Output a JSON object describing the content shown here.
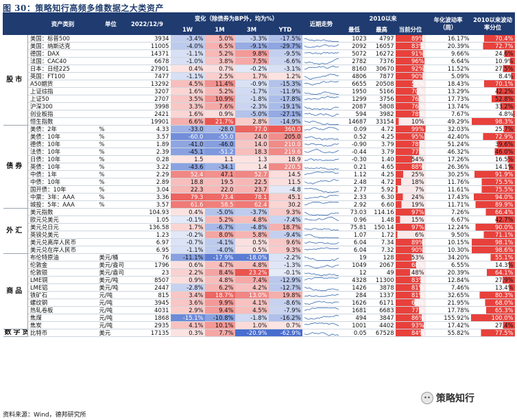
{
  "caption": "图 30：策略知行高频多维数据之大类资产",
  "source": "资料来源：Wind，德邦研究所",
  "watermark": "策略知行",
  "headers": {
    "top": {
      "change": "变化（除债券为BP外，均为%）",
      "since2010": "2010以来"
    },
    "asset": "资产类别",
    "unit": "单位",
    "date": "2022/12/9",
    "w1": "1W",
    "m1": "1M",
    "m3": "3M",
    "ytd": "YTD",
    "trend": "近期走势",
    "low": "最低",
    "high": "最高",
    "pct": "当前分位",
    "vol": "年化波动率（周）",
    "volpct": "2010以来波动率分位"
  },
  "colors": {
    "red": "#e8413c",
    "blue": "#2f59c8",
    "header": "#1f3b70"
  },
  "groups": [
    {
      "name": "股市",
      "rows": [
        {
          "name": "美国：标普500",
          "unit": "",
          "value": "3934",
          "w1": "-3.4%",
          "m1": "5.0%",
          "m3": "-3.3%",
          "ytd": "-17.5%",
          "low": "1023",
          "high": "4797",
          "pct": "89%",
          "vol": "16.17%",
          "volpct": "70.4%"
        },
        {
          "name": "美国：纳斯达克",
          "unit": "",
          "value": "11005",
          "w1": "-4.0%",
          "m1": "6.5%",
          "m3": "-9.1%",
          "ytd": "-29.7%",
          "low": "2092",
          "high": "16057",
          "pct": "83%",
          "vol": "20.39%",
          "volpct": "72.7%"
        },
        {
          "name": "德国：DAX",
          "unit": "",
          "value": "14371",
          "w1": "-1.1%",
          "m1": "5.2%",
          "m3": "9.8%",
          "ytd": "-9.5%",
          "low": "5072",
          "high": "16272",
          "pct": "91%",
          "vol": "9.66%",
          "volpct": "24.6%"
        },
        {
          "name": "法国：CAC40",
          "unit": "",
          "value": "6678",
          "w1": "-1.0%",
          "m1": "3.8%",
          "m3": "7.5%",
          "ytd": "-6.6%",
          "low": "2782",
          "high": "7376",
          "pct": "96%",
          "vol": "6.64%",
          "volpct": "10.9%"
        },
        {
          "name": "日本：日经225",
          "unit": "",
          "value": "27901",
          "w1": "0.4%",
          "m1": "0.7%",
          "m3": "-0.2%",
          "ytd": "-3.1%",
          "low": "8160",
          "high": "30670",
          "pct": "92%",
          "vol": "11.52%",
          "volpct": "27.5%"
        },
        {
          "name": "英国：FT100",
          "unit": "",
          "value": "7477",
          "w1": "-1.1%",
          "m1": "2.5%",
          "m3": "1.7%",
          "ytd": "1.2%",
          "low": "4806",
          "high": "7877",
          "pct": "90%",
          "vol": "5.09%",
          "volpct": "8.4%"
        },
        {
          "name": "A50期货",
          "unit": "",
          "value": "13292",
          "w1": "4.5%",
          "m1": "11.4%",
          "m3": "-0.9%",
          "ytd": "-15.3%",
          "low": "6655",
          "high": "20508",
          "pct": "58%",
          "vol": "18.43%",
          "volpct": "70.1%"
        },
        {
          "name": "上证综指",
          "unit": "",
          "value": "3207",
          "w1": "1.6%",
          "m1": "5.2%",
          "m3": "-1.7%",
          "ytd": "-11.9%",
          "low": "1950",
          "high": "5166",
          "pct": "70%",
          "vol": "13.29%",
          "volpct": "42.2%"
        },
        {
          "name": "上证50",
          "unit": "",
          "value": "2707",
          "w1": "3.5%",
          "m1": "10.9%",
          "m3": "-1.8%",
          "ytd": "-17.8%",
          "low": "1299",
          "high": "3756",
          "pct": "76%",
          "vol": "17.73%",
          "volpct": "52.8%"
        },
        {
          "name": "沪深300",
          "unit": "",
          "value": "3998",
          "w1": "3.3%",
          "m1": "7.6%",
          "m3": "-2.3%",
          "ytd": "-19.1%",
          "low": "2087",
          "high": "5808",
          "pct": "76%",
          "vol": "13.74%",
          "volpct": "33.2%"
        },
        {
          "name": "创业板指",
          "unit": "",
          "value": "2421",
          "w1": "1.6%",
          "m1": "0.9%",
          "m3": "-5.0%",
          "ytd": "-27.1%",
          "low": "594",
          "high": "3982",
          "pct": "78%",
          "vol": "7.67%",
          "volpct": "4.8%"
        },
        {
          "name": "恒生指数",
          "unit": "",
          "value": "19901",
          "w1": "6.6%",
          "m1": "21.7%",
          "m3": "2.8%",
          "ytd": "-14.9%",
          "low": "14687",
          "high": "33154",
          "pct": "10%",
          "vol": "49.29%",
          "volpct": "98.3%"
        }
      ]
    },
    {
      "name": "债券",
      "rows": [
        {
          "name": "美债：2年",
          "unit": "%",
          "value": "4.33",
          "w1": "-33.0",
          "m1": "-28.0",
          "m3": "77.0",
          "ytd": "360.0",
          "low": "0.09",
          "high": "4.72",
          "pct": "99%",
          "vol": "32.03%",
          "volpct": "25.7%"
        },
        {
          "name": "美债：10年",
          "unit": "%",
          "value": "3.57",
          "w1": "-60.0",
          "m1": "-55.0",
          "m3": "24.0",
          "ytd": "205.0",
          "low": "0.52",
          "high": "4.25",
          "pct": "95%",
          "vol": "42.40%",
          "volpct": "72.9%"
        },
        {
          "name": "德债：10年",
          "unit": "%",
          "value": "1.89",
          "w1": "-41.0",
          "m1": "-46.0",
          "m3": "14.0",
          "ytd": "210.0",
          "low": "-0.90",
          "high": "3.79",
          "pct": "78%",
          "vol": "51.24%",
          "volpct": "39.6%"
        },
        {
          "name": "法债：10年",
          "unit": "%",
          "value": "2.39",
          "w1": "-45.1",
          "m1": "-51.2",
          "m3": "18.3",
          "ytd": "219.6",
          "low": "-0.44",
          "high": "3.79",
          "pct": "77%",
          "vol": "46.32%",
          "volpct": "46.0%"
        },
        {
          "name": "日债：10年",
          "unit": "%",
          "value": "0.28",
          "w1": "1.5",
          "m1": "1.1",
          "m3": "1.3",
          "ytd": "18.9",
          "low": "-0.30",
          "high": "1.40",
          "pct": "54%",
          "vol": "17.26%",
          "volpct": "16.5%"
        },
        {
          "name": "英债：10年",
          "unit": "%",
          "value": "3.22",
          "w1": "-43.6",
          "m1": "-34.1",
          "m3": "1.4",
          "ytd": "220.5",
          "low": "0.21",
          "high": "4.65",
          "pct": "88%",
          "vol": "26.36%",
          "volpct": "14.1%"
        },
        {
          "name": "中债：1年",
          "unit": "%",
          "value": "2.29",
          "w1": "52.4",
          "m1": "47.1",
          "m3": "52.7",
          "ytd": "14.5",
          "low": "1.12",
          "high": "4.25",
          "pct": "25%",
          "vol": "30.25%",
          "volpct": "91.9%"
        },
        {
          "name": "中债：10年",
          "unit": "%",
          "value": "2.89",
          "w1": "18.8",
          "m1": "19.5",
          "m3": "22.5",
          "ytd": "11.5",
          "low": "2.48",
          "high": "4.72",
          "pct": "18%",
          "vol": "11.76%",
          "volpct": "75.5%"
        },
        {
          "name": "国开债：10年",
          "unit": "%",
          "value": "3.04",
          "w1": "22.3",
          "m1": "22.0",
          "m3": "23.7",
          "ytd": "-4.8",
          "low": "2.77",
          "high": "5.92",
          "pct": "7%",
          "vol": "11.61%",
          "volpct": "75.5%"
        },
        {
          "name": "中票：3年：AAA",
          "unit": "%",
          "value": "3.36",
          "w1": "79.3",
          "m1": "73.4",
          "m3": "78.1",
          "ytd": "45.1",
          "low": "2.33",
          "high": "6.30",
          "pct": "24%",
          "vol": "17.43%",
          "volpct": "94.0%"
        },
        {
          "name": "城投：5年：AAA",
          "unit": "%",
          "value": "3.57",
          "w1": "61.6",
          "m1": "58.5",
          "m3": "62.4",
          "ytd": "30.2",
          "low": "2.92",
          "high": "6.60",
          "pct": "19%",
          "vol": "11.71%",
          "volpct": "89.9%"
        }
      ]
    },
    {
      "name": "外汇",
      "rows": [
        {
          "name": "美元指数",
          "unit": "",
          "value": "104.93",
          "w1": "0.4%",
          "m1": "-5.0%",
          "m3": "-3.7%",
          "ytd": "9.3%",
          "low": "73.03",
          "high": "114.16",
          "pct": "97%",
          "vol": "7.26%",
          "volpct": "66.4%"
        },
        {
          "name": "欧元兑美元",
          "unit": "",
          "value": "1.05",
          "w1": "-0.1%",
          "m1": "5.2%",
          "m3": "4.8%",
          "ytd": "-7.4%",
          "low": "0.96",
          "high": "1.48",
          "pct": "15%",
          "vol": "6.67%",
          "volpct": "42.7%"
        },
        {
          "name": "美元兑日元",
          "unit": "",
          "value": "136.58",
          "w1": "1.7%",
          "m1": "-6.7%",
          "m3": "-4.8%",
          "ytd": "18.7%",
          "low": "75.81",
          "high": "150.14",
          "pct": "97%",
          "vol": "12.24%",
          "volpct": "90.0%"
        },
        {
          "name": "英镑兑美元",
          "unit": "",
          "value": "1.23",
          "w1": "-0.2%",
          "m1": "8.0%",
          "m3": "5.8%",
          "ytd": "-9.4%",
          "low": "1.07",
          "high": "1.72",
          "pct": "6%",
          "vol": "9.50%",
          "volpct": "71.1%"
        },
        {
          "name": "美元兑离岸人民币",
          "unit": "",
          "value": "6.97",
          "w1": "-0.7%",
          "m1": "-4.1%",
          "m3": "0.5%",
          "ytd": "9.6%",
          "low": "6.04",
          "high": "7.34",
          "pct": "89%",
          "vol": "10.15%",
          "volpct": "98.1%"
        },
        {
          "name": "美元兑在岸人民币",
          "unit": "",
          "value": "6.95",
          "w1": "-1.1%",
          "m1": "-4.0%",
          "m3": "0.5%",
          "ytd": "9.3%",
          "low": "6.04",
          "high": "7.32",
          "pct": "90%",
          "vol": "10.30%",
          "volpct": "98.6%"
        }
      ]
    },
    {
      "name": "商品",
      "rows": [
        {
          "name": "布伦特原油",
          "unit": "美元/桶",
          "value": "76",
          "w1": "-11.1%",
          "m1": "-17.9%",
          "m3": "-18.0%",
          "ytd": "-2.2%",
          "low": "19",
          "high": "128",
          "pct": "53%",
          "vol": "34.20%",
          "volpct": "55.1%"
        },
        {
          "name": "伦敦金",
          "unit": "美元/盎司",
          "value": "1796",
          "w1": "0.6%",
          "m1": "4.7%",
          "m3": "4.8%",
          "ytd": "-1.3%",
          "low": "1049",
          "high": "2067",
          "pct": "68%",
          "vol": "6.55%",
          "volpct": "14.3%"
        },
        {
          "name": "伦敦银",
          "unit": "美元/盎司",
          "value": "23",
          "w1": "2.2%",
          "m1": "8.4%",
          "m3": "23.2%",
          "ytd": "-0.1%",
          "low": "12",
          "high": "49",
          "pct": "48%",
          "vol": "20.39%",
          "volpct": "64.1%"
        },
        {
          "name": "LME铜",
          "unit": "美元/吨",
          "value": "8507",
          "w1": "0.9%",
          "m1": "4.8%",
          "m3": "7.4%",
          "ytd": "-12.9%",
          "low": "4328",
          "high": "11300",
          "pct": "83%",
          "vol": "12.84%",
          "volpct": "27.9%"
        },
        {
          "name": "LME铝",
          "unit": "美元/吨",
          "value": "2447",
          "w1": "-2.8%",
          "m1": "6.2%",
          "m3": "4.2%",
          "ytd": "-12.7%",
          "low": "1426",
          "high": "3878",
          "pct": "81%",
          "vol": "7.46%",
          "volpct": "13.4%"
        },
        {
          "name": "铁矿石",
          "unit": "元/吨",
          "value": "815",
          "w1": "3.4%",
          "m1": "18.7%",
          "m3": "13.0%",
          "ytd": "19.8%",
          "low": "284",
          "high": "1337",
          "pct": "81%",
          "vol": "32.65%",
          "volpct": "80.3%"
        },
        {
          "name": "螺纹钢",
          "unit": "元/吨",
          "value": "3945",
          "w1": "3.6%",
          "m1": "9.9%",
          "m3": "4.1%",
          "ytd": "-8.6%",
          "low": "1626",
          "high": "6171",
          "pct": "63%",
          "vol": "21.95%",
          "volpct": "68.0%"
        },
        {
          "name": "热轧卷板",
          "unit": "元/吨",
          "value": "4031",
          "w1": "2.9%",
          "m1": "9.4%",
          "m3": "4.5%",
          "ytd": "-7.9%",
          "low": "1681",
          "high": "6683",
          "pct": "77%",
          "vol": "17.78%",
          "volpct": "65.3%"
        },
        {
          "name": "焦煤",
          "unit": "元/吨",
          "value": "1868",
          "w1": "-15.1%",
          "m1": "-10.8%",
          "m3": "-1.8%",
          "ytd": "-16.2%",
          "low": "494",
          "high": "3847",
          "pct": "86%",
          "vol": "155.92%",
          "volpct": "100.0%"
        },
        {
          "name": "焦炭",
          "unit": "元/吨",
          "value": "2935",
          "w1": "4.1%",
          "m1": "10.1%",
          "m3": "1.0%",
          "ytd": "0.7%",
          "low": "1001",
          "high": "4402",
          "pct": "93%",
          "vol": "17.42%",
          "volpct": "27.4%"
        }
      ]
    },
    {
      "name": "数字货币",
      "rows": [
        {
          "name": "比特币",
          "unit": "美元",
          "value": "17135",
          "w1": "0.3%",
          "m1": "7.7%",
          "m3": "-20.9%",
          "ytd": "-62.9%",
          "low": "0.05",
          "high": "67528",
          "pct": "84%",
          "vol": "55.82%",
          "volpct": "77.5%"
        }
      ]
    }
  ]
}
